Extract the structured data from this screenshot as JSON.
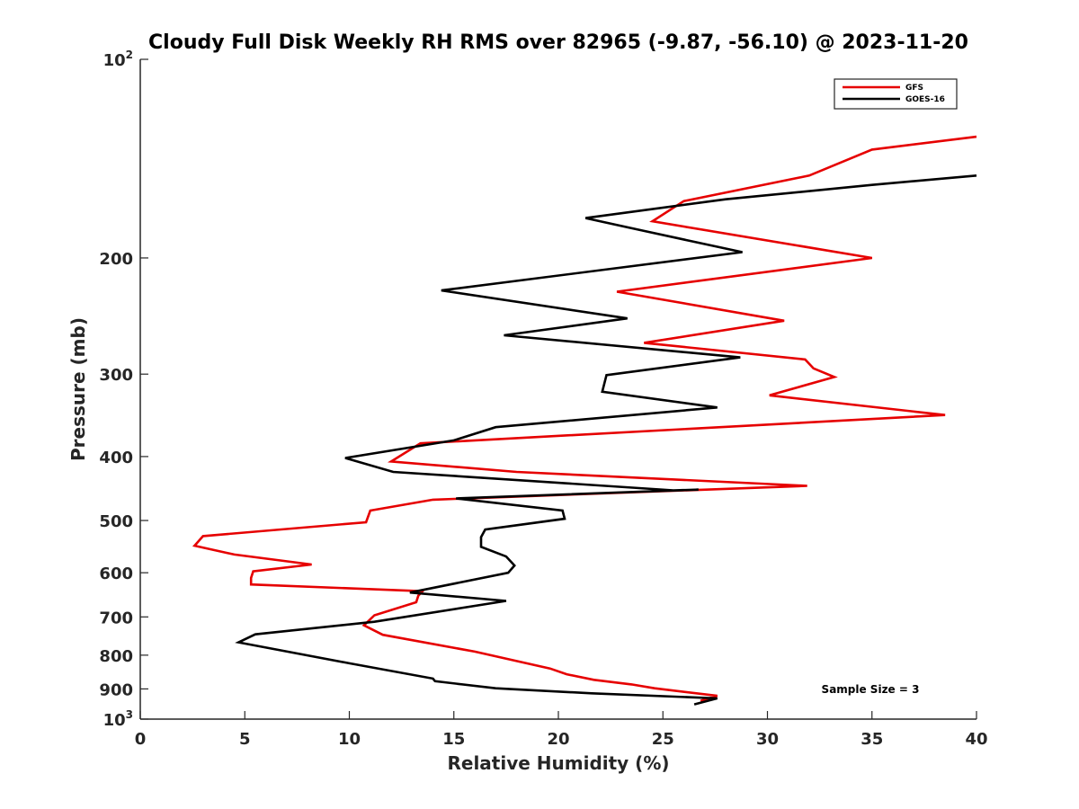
{
  "chart_data": {
    "type": "line",
    "title": "Cloudy Full Disk Weekly RH RMS over 82965 (-9.87, -56.10) @ 2023-11-20",
    "xlabel": "Relative Humidity (%)",
    "ylabel": "Pressure (mb)",
    "xlim": [
      0,
      40
    ],
    "ylim": [
      100,
      1000
    ],
    "y_scale": "log",
    "y_reversed": true,
    "x_ticks": [
      "0",
      "5",
      "10",
      "15",
      "20",
      "25",
      "30",
      "35",
      "40"
    ],
    "y_ticks": [
      {
        "value": 100,
        "label": "10",
        "sup": "2"
      },
      {
        "value": 200,
        "label": "200"
      },
      {
        "value": 300,
        "label": "300"
      },
      {
        "value": 400,
        "label": "400"
      },
      {
        "value": 500,
        "label": "500"
      },
      {
        "value": 600,
        "label": "600"
      },
      {
        "value": 700,
        "label": "700"
      },
      {
        "value": 800,
        "label": "800"
      },
      {
        "value": 900,
        "label": "900"
      },
      {
        "value": 1000,
        "label": "10",
        "sup": "3"
      }
    ],
    "grid": false,
    "legend_position": "top-right",
    "annotation": "Sample Size = 3",
    "series": [
      {
        "name": "GFS",
        "color": "#e60000",
        "points": [
          {
            "x": 40.0,
            "y": 131
          },
          {
            "x": 35.0,
            "y": 137
          },
          {
            "x": 32.0,
            "y": 150
          },
          {
            "x": 26.0,
            "y": 164
          },
          {
            "x": 24.5,
            "y": 176
          },
          {
            "x": 35.0,
            "y": 200
          },
          {
            "x": 22.8,
            "y": 225
          },
          {
            "x": 30.8,
            "y": 249
          },
          {
            "x": 24.1,
            "y": 269
          },
          {
            "x": 31.8,
            "y": 285
          },
          {
            "x": 32.2,
            "y": 294
          },
          {
            "x": 33.2,
            "y": 303
          },
          {
            "x": 30.1,
            "y": 323
          },
          {
            "x": 38.5,
            "y": 346
          },
          {
            "x": 13.4,
            "y": 382
          },
          {
            "x": 12.0,
            "y": 407
          },
          {
            "x": 18.0,
            "y": 422
          },
          {
            "x": 31.9,
            "y": 443
          },
          {
            "x": 14.0,
            "y": 465
          },
          {
            "x": 11.0,
            "y": 483
          },
          {
            "x": 10.8,
            "y": 503
          },
          {
            "x": 3.0,
            "y": 528
          },
          {
            "x": 2.6,
            "y": 546
          },
          {
            "x": 4.5,
            "y": 563
          },
          {
            "x": 8.2,
            "y": 583
          },
          {
            "x": 5.4,
            "y": 597
          },
          {
            "x": 5.3,
            "y": 611
          },
          {
            "x": 5.3,
            "y": 625
          },
          {
            "x": 13.5,
            "y": 640
          },
          {
            "x": 13.3,
            "y": 650
          },
          {
            "x": 13.2,
            "y": 665
          },
          {
            "x": 11.2,
            "y": 696
          },
          {
            "x": 10.7,
            "y": 721
          },
          {
            "x": 11.6,
            "y": 745
          },
          {
            "x": 16.0,
            "y": 790
          },
          {
            "x": 19.6,
            "y": 838
          },
          {
            "x": 20.4,
            "y": 855
          },
          {
            "x": 21.7,
            "y": 872
          },
          {
            "x": 23.5,
            "y": 886
          },
          {
            "x": 24.6,
            "y": 898
          },
          {
            "x": 27.6,
            "y": 922
          },
          {
            "x": 26.8,
            "y": 938
          }
        ]
      },
      {
        "name": "GOES-16",
        "color": "#000000",
        "points": [
          {
            "x": 40.0,
            "y": 150
          },
          {
            "x": 35.0,
            "y": 155
          },
          {
            "x": 28.0,
            "y": 163
          },
          {
            "x": 21.3,
            "y": 174
          },
          {
            "x": 24.1,
            "y": 182
          },
          {
            "x": 28.8,
            "y": 196
          },
          {
            "x": 14.4,
            "y": 224
          },
          {
            "x": 23.3,
            "y": 247
          },
          {
            "x": 17.4,
            "y": 262
          },
          {
            "x": 28.7,
            "y": 283
          },
          {
            "x": 22.3,
            "y": 301
          },
          {
            "x": 22.1,
            "y": 319
          },
          {
            "x": 27.6,
            "y": 337
          },
          {
            "x": 17.0,
            "y": 361
          },
          {
            "x": 15.0,
            "y": 378
          },
          {
            "x": 9.8,
            "y": 402
          },
          {
            "x": 12.1,
            "y": 422
          },
          {
            "x": 25.5,
            "y": 450
          },
          {
            "x": 26.7,
            "y": 449
          },
          {
            "x": 15.1,
            "y": 463
          },
          {
            "x": 20.2,
            "y": 483
          },
          {
            "x": 20.3,
            "y": 497
          },
          {
            "x": 16.5,
            "y": 516
          },
          {
            "x": 16.3,
            "y": 530
          },
          {
            "x": 16.3,
            "y": 548
          },
          {
            "x": 17.5,
            "y": 567
          },
          {
            "x": 17.9,
            "y": 585
          },
          {
            "x": 17.6,
            "y": 600
          },
          {
            "x": 12.9,
            "y": 643
          },
          {
            "x": 17.5,
            "y": 662
          },
          {
            "x": 11.2,
            "y": 712
          },
          {
            "x": 5.5,
            "y": 744
          },
          {
            "x": 4.7,
            "y": 765
          },
          {
            "x": 10.0,
            "y": 823
          },
          {
            "x": 14.0,
            "y": 868
          },
          {
            "x": 14.1,
            "y": 876
          },
          {
            "x": 17.0,
            "y": 898
          },
          {
            "x": 21.6,
            "y": 914
          },
          {
            "x": 27.6,
            "y": 930
          },
          {
            "x": 26.5,
            "y": 950
          }
        ]
      }
    ]
  }
}
